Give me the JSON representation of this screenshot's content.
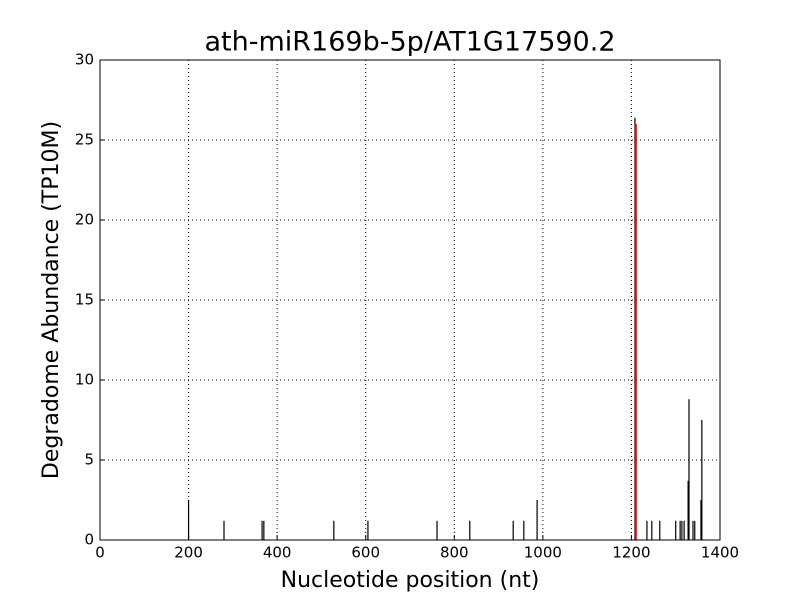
{
  "chart_data": {
    "type": "stem",
    "title": "ath-miR169b-5p/AT1G17590.2",
    "xlabel": "Nucleotide position (nt)",
    "ylabel": "Degradome Abundance (TP10M)",
    "series": [
      {
        "color": "#000000",
        "x": [
          200,
          280,
          366,
          370,
          528,
          605,
          761,
          835,
          933,
          957,
          987,
          1208,
          1235,
          1246,
          1264,
          1300,
          1310,
          1314,
          1319,
          1328,
          1330,
          1339,
          1343,
          1357,
          1359
        ],
        "values": [
          2.5,
          1.2,
          1.2,
          1.2,
          1.2,
          1.2,
          1.2,
          1.2,
          1.2,
          1.2,
          2.5,
          26.4,
          1.2,
          1.2,
          1.2,
          1.2,
          1.2,
          1.2,
          1.2,
          3.7,
          8.8,
          1.2,
          1.2,
          2.5,
          7.5
        ]
      },
      {
        "color": "#ff0000",
        "x": [
          1210
        ],
        "values": [
          26
        ]
      }
    ],
    "xlim": [
      0,
      1400
    ],
    "xticks": [
      0,
      200,
      400,
      600,
      800,
      1000,
      1200,
      1400
    ],
    "ylim": [
      0,
      30
    ],
    "yticks": [
      0,
      5,
      10,
      15,
      20,
      25,
      30
    ],
    "grid": true
  }
}
